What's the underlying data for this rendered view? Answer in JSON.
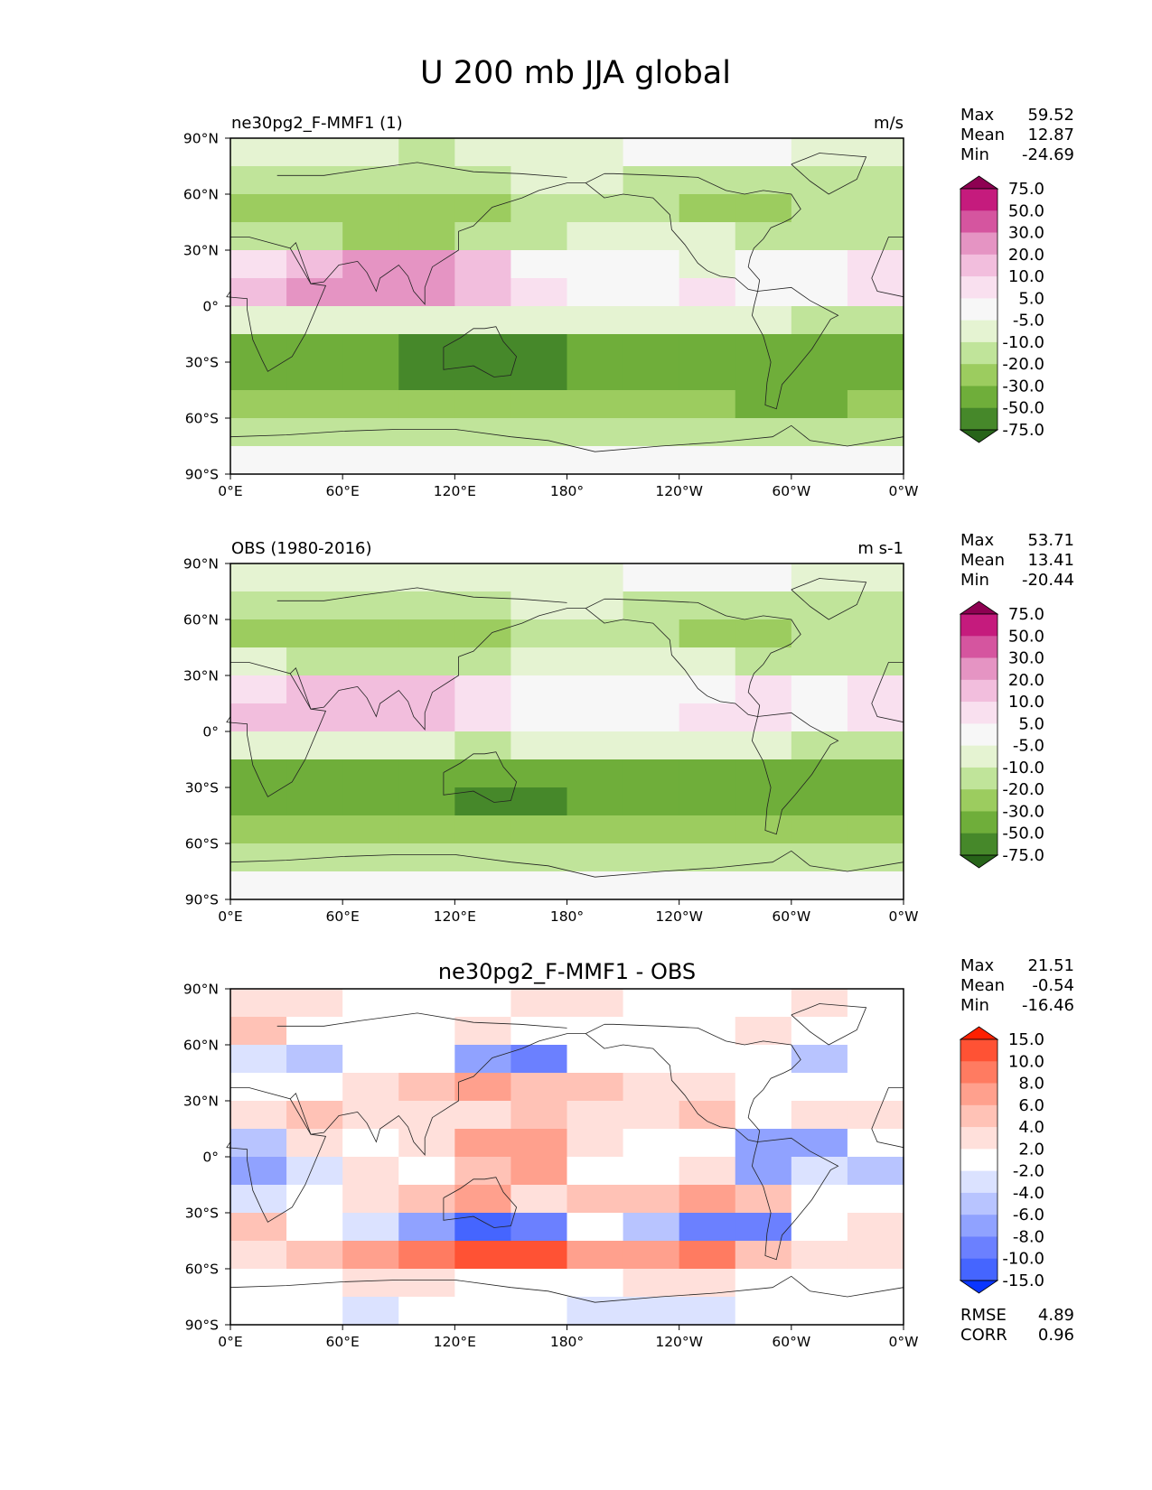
{
  "figure_title": "U 200 mb JJA global",
  "chart_data": [
    {
      "type": "heatmap",
      "title": "ne30pg2_F-MMF1 (1)",
      "units": "m/s",
      "x_ticks": [
        "0°E",
        "60°E",
        "120°E",
        "180°",
        "120°W",
        "60°W",
        "0°W"
      ],
      "y_ticks": [
        "90°N",
        "60°N",
        "30°N",
        "0°",
        "30°S",
        "60°S",
        "90°S"
      ],
      "stats": [
        {
          "label": "Max",
          "value": "59.52"
        },
        {
          "label": "Mean",
          "value": "12.87"
        },
        {
          "label": "Min",
          "value": "-24.69"
        }
      ],
      "colorbar_levels": [
        "75.0",
        "50.0",
        "30.0",
        "20.0",
        "10.0",
        "5.0",
        "-5.0",
        "-10.0",
        "-20.0",
        "-30.0",
        "-50.0",
        "-75.0"
      ],
      "colorbar_colors": [
        "#8e0152",
        "#c51b7d",
        "#d5559f",
        "#e594c3",
        "#f2bedd",
        "#f9e0ef",
        "#f7f7f7",
        "#e5f3d2",
        "#c0e49a",
        "#9ccc5f",
        "#6fae3a",
        "#46882a",
        "#276419"
      ],
      "field": [
        [
          5,
          5,
          5,
          4,
          5,
          5,
          5,
          6,
          6,
          6,
          5,
          5
        ],
        [
          4,
          4,
          4,
          4,
          4,
          5,
          5,
          4,
          4,
          4,
          4,
          4
        ],
        [
          3,
          3,
          3,
          3,
          3,
          4,
          4,
          4,
          3,
          3,
          4,
          4
        ],
        [
          4,
          4,
          3,
          3,
          4,
          4,
          5,
          5,
          5,
          4,
          4,
          4
        ],
        [
          7,
          8,
          9,
          9,
          8,
          6,
          6,
          6,
          5,
          6,
          6,
          7
        ],
        [
          8,
          9,
          9,
          9,
          8,
          7,
          6,
          6,
          7,
          6,
          6,
          7
        ],
        [
          5,
          5,
          5,
          5,
          5,
          5,
          5,
          5,
          5,
          5,
          4,
          4
        ],
        [
          2,
          2,
          2,
          1,
          1,
          1,
          2,
          2,
          2,
          2,
          2,
          2
        ],
        [
          2,
          2,
          2,
          1,
          1,
          1,
          2,
          2,
          2,
          2,
          2,
          2
        ],
        [
          3,
          3,
          3,
          3,
          3,
          3,
          3,
          3,
          3,
          2,
          2,
          3
        ],
        [
          4,
          4,
          4,
          4,
          4,
          4,
          4,
          4,
          4,
          4,
          4,
          4
        ],
        [
          6,
          6,
          6,
          6,
          6,
          6,
          6,
          6,
          6,
          6,
          6,
          6
        ]
      ]
    },
    {
      "type": "heatmap",
      "title": "OBS (1980-2016)",
      "units": "m s-1",
      "x_ticks": [
        "0°E",
        "60°E",
        "120°E",
        "180°",
        "120°W",
        "60°W",
        "0°W"
      ],
      "y_ticks": [
        "90°N",
        "60°N",
        "30°N",
        "0°",
        "30°S",
        "60°S",
        "90°S"
      ],
      "stats": [
        {
          "label": "Max",
          "value": "53.71"
        },
        {
          "label": "Mean",
          "value": "13.41"
        },
        {
          "label": "Min",
          "value": "-20.44"
        }
      ],
      "colorbar_levels": [
        "75.0",
        "50.0",
        "30.0",
        "20.0",
        "10.0",
        "5.0",
        "-5.0",
        "-10.0",
        "-20.0",
        "-30.0",
        "-50.0",
        "-75.0"
      ],
      "colorbar_colors": [
        "#8e0152",
        "#c51b7d",
        "#d5559f",
        "#e594c3",
        "#f2bedd",
        "#f9e0ef",
        "#f7f7f7",
        "#e5f3d2",
        "#c0e49a",
        "#9ccc5f",
        "#6fae3a",
        "#46882a",
        "#276419"
      ],
      "field": [
        [
          5,
          5,
          5,
          5,
          5,
          5,
          5,
          6,
          6,
          6,
          5,
          5
        ],
        [
          4,
          4,
          4,
          4,
          4,
          5,
          5,
          4,
          4,
          4,
          4,
          4
        ],
        [
          3,
          3,
          3,
          3,
          3,
          4,
          4,
          4,
          3,
          3,
          4,
          4
        ],
        [
          5,
          4,
          4,
          4,
          4,
          5,
          5,
          5,
          5,
          4,
          4,
          4
        ],
        [
          7,
          8,
          8,
          8,
          7,
          6,
          6,
          6,
          6,
          7,
          6,
          7
        ],
        [
          8,
          8,
          8,
          8,
          7,
          6,
          6,
          6,
          7,
          7,
          6,
          7
        ],
        [
          5,
          5,
          5,
          5,
          4,
          5,
          5,
          5,
          5,
          5,
          4,
          4
        ],
        [
          2,
          2,
          2,
          2,
          2,
          2,
          2,
          2,
          2,
          2,
          2,
          2
        ],
        [
          2,
          2,
          2,
          2,
          1,
          1,
          2,
          2,
          2,
          2,
          2,
          2
        ],
        [
          3,
          3,
          3,
          3,
          3,
          3,
          3,
          3,
          3,
          3,
          3,
          3
        ],
        [
          4,
          4,
          4,
          4,
          4,
          4,
          4,
          4,
          4,
          4,
          4,
          4
        ],
        [
          6,
          6,
          6,
          6,
          6,
          6,
          6,
          6,
          6,
          6,
          6,
          6
        ]
      ]
    },
    {
      "type": "heatmap",
      "title": "ne30pg2_F-MMF1 - OBS",
      "units": "",
      "x_ticks": [
        "0°E",
        "60°E",
        "120°E",
        "180°",
        "120°W",
        "60°W",
        "0°W"
      ],
      "y_ticks": [
        "90°N",
        "60°N",
        "30°N",
        "0°",
        "30°S",
        "60°S",
        "90°S"
      ],
      "stats": [
        {
          "label": "Max",
          "value": "21.51"
        },
        {
          "label": "Mean",
          "value": "-0.54"
        },
        {
          "label": "Min",
          "value": "-16.46"
        }
      ],
      "colorbar_levels": [
        "15.0",
        "10.0",
        "8.0",
        "6.0",
        "4.0",
        "2.0",
        "-2.0",
        "-4.0",
        "-6.0",
        "-8.0",
        "-10.0",
        "-15.0"
      ],
      "colorbar_colors": [
        "#ff2000",
        "#ff5234",
        "#ff7b61",
        "#ffa08d",
        "#ffc2b6",
        "#ffe0db",
        "#ffffff",
        "#dbe2ff",
        "#b8c4ff",
        "#90a2ff",
        "#6b80ff",
        "#4565ff",
        "#0a36ff"
      ],
      "field": [
        [
          7,
          7,
          6,
          6,
          6,
          7,
          7,
          6,
          6,
          6,
          7,
          6
        ],
        [
          8,
          6,
          6,
          6,
          7,
          6,
          6,
          6,
          6,
          7,
          6,
          6
        ],
        [
          5,
          4,
          6,
          6,
          3,
          2,
          6,
          6,
          6,
          6,
          4,
          6
        ],
        [
          6,
          6,
          7,
          8,
          9,
          8,
          8,
          7,
          7,
          6,
          6,
          6
        ],
        [
          7,
          8,
          7,
          7,
          7,
          8,
          7,
          7,
          8,
          6,
          7,
          7
        ],
        [
          4,
          7,
          6,
          7,
          9,
          9,
          7,
          6,
          6,
          3,
          3,
          6
        ],
        [
          3,
          5,
          7,
          6,
          8,
          9,
          6,
          6,
          7,
          3,
          5,
          4
        ],
        [
          5,
          6,
          7,
          8,
          9,
          7,
          8,
          8,
          9,
          8,
          6,
          6
        ],
        [
          8,
          6,
          5,
          3,
          1,
          2,
          6,
          4,
          2,
          2,
          6,
          7
        ],
        [
          7,
          8,
          9,
          10,
          11,
          11,
          9,
          9,
          10,
          8,
          7,
          7
        ],
        [
          6,
          6,
          7,
          7,
          6,
          6,
          6,
          7,
          7,
          6,
          6,
          6
        ],
        [
          6,
          6,
          5,
          6,
          6,
          6,
          5,
          5,
          5,
          6,
          6,
          6
        ]
      ],
      "extra_stats": [
        {
          "label": "RMSE",
          "value": "4.89"
        },
        {
          "label": "CORR",
          "value": "0.96"
        }
      ]
    }
  ]
}
